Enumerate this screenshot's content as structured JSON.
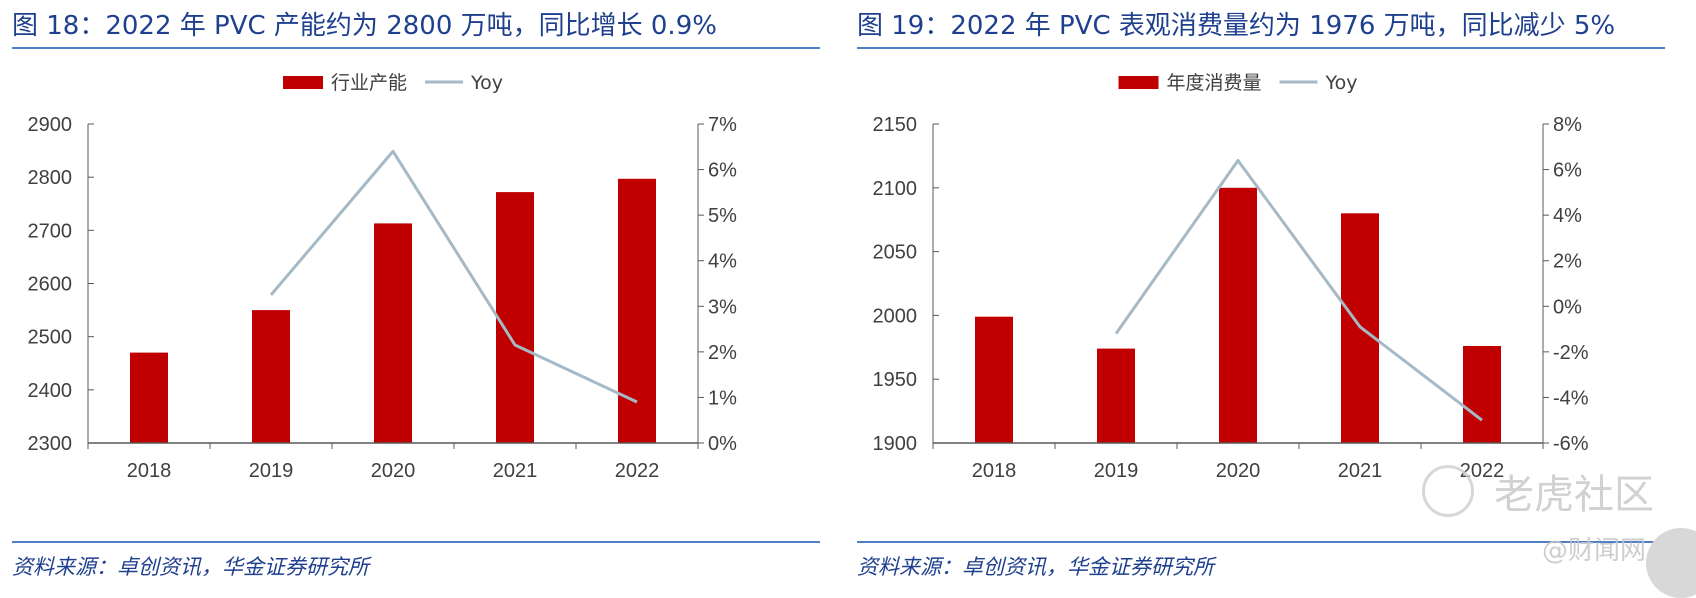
{
  "panels": [
    {
      "figure_title": "图 18：2022 年 PVC 产能约为 2800 万吨，同比增长 0.9%",
      "source": "资料来源：卓创资讯，华金证券研究所"
    },
    {
      "figure_title": "图 19：2022 年 PVC 表观消费量约为 1976 万吨，同比减少 5%",
      "source": "资料来源：卓创资讯，华金证券研究所"
    }
  ],
  "watermark": {
    "text": "老虎社区",
    "subtext": "@财闻网"
  },
  "chart_data": [
    {
      "type": "bar",
      "categories": [
        "2018",
        "2019",
        "2020",
        "2021",
        "2022"
      ],
      "series": [
        {
          "name": "行业产能",
          "type": "bar",
          "axis": "left",
          "color": "#c00000",
          "values": [
            2470,
            2550,
            2713,
            2772,
            2797
          ]
        },
        {
          "name": "Yoy",
          "type": "line",
          "axis": "right",
          "color": "#a6b9c6",
          "values": [
            null,
            0.0325,
            0.064,
            0.0215,
            0.009
          ]
        }
      ],
      "y_left": {
        "min": 2300,
        "max": 2900,
        "ticks": [
          2300,
          2400,
          2500,
          2600,
          2700,
          2800,
          2900
        ]
      },
      "y_right": {
        "min": 0,
        "max": 0.07,
        "ticks": [
          0,
          0.01,
          0.02,
          0.03,
          0.04,
          0.05,
          0.06,
          0.07
        ],
        "tick_labels": [
          "0%",
          "1%",
          "2%",
          "3%",
          "4%",
          "5%",
          "6%",
          "7%"
        ]
      },
      "legend": {
        "position": "top-center",
        "entries": [
          "行业产能",
          "Yoy"
        ]
      },
      "grid": false
    },
    {
      "type": "bar",
      "categories": [
        "2018",
        "2019",
        "2020",
        "2021",
        "2022"
      ],
      "series": [
        {
          "name": "年度消费量",
          "type": "bar",
          "axis": "left",
          "color": "#c00000",
          "values": [
            1999,
            1974,
            2100,
            2080,
            1976
          ]
        },
        {
          "name": "Yoy",
          "type": "line",
          "axis": "right",
          "color": "#a6b9c6",
          "values": [
            null,
            -0.012,
            0.064,
            -0.009,
            -0.05
          ]
        }
      ],
      "y_left": {
        "min": 1900,
        "max": 2150,
        "ticks": [
          1900,
          1950,
          2000,
          2050,
          2100,
          2150
        ]
      },
      "y_right": {
        "min": -0.06,
        "max": 0.08,
        "ticks": [
          -0.06,
          -0.04,
          -0.02,
          0,
          0.02,
          0.04,
          0.06,
          0.08
        ],
        "tick_labels": [
          "-6%",
          "-4%",
          "-2%",
          "0%",
          "2%",
          "4%",
          "6%",
          "8%"
        ]
      },
      "legend": {
        "position": "top-center",
        "entries": [
          "年度消费量",
          "Yoy"
        ]
      },
      "grid": false
    }
  ]
}
